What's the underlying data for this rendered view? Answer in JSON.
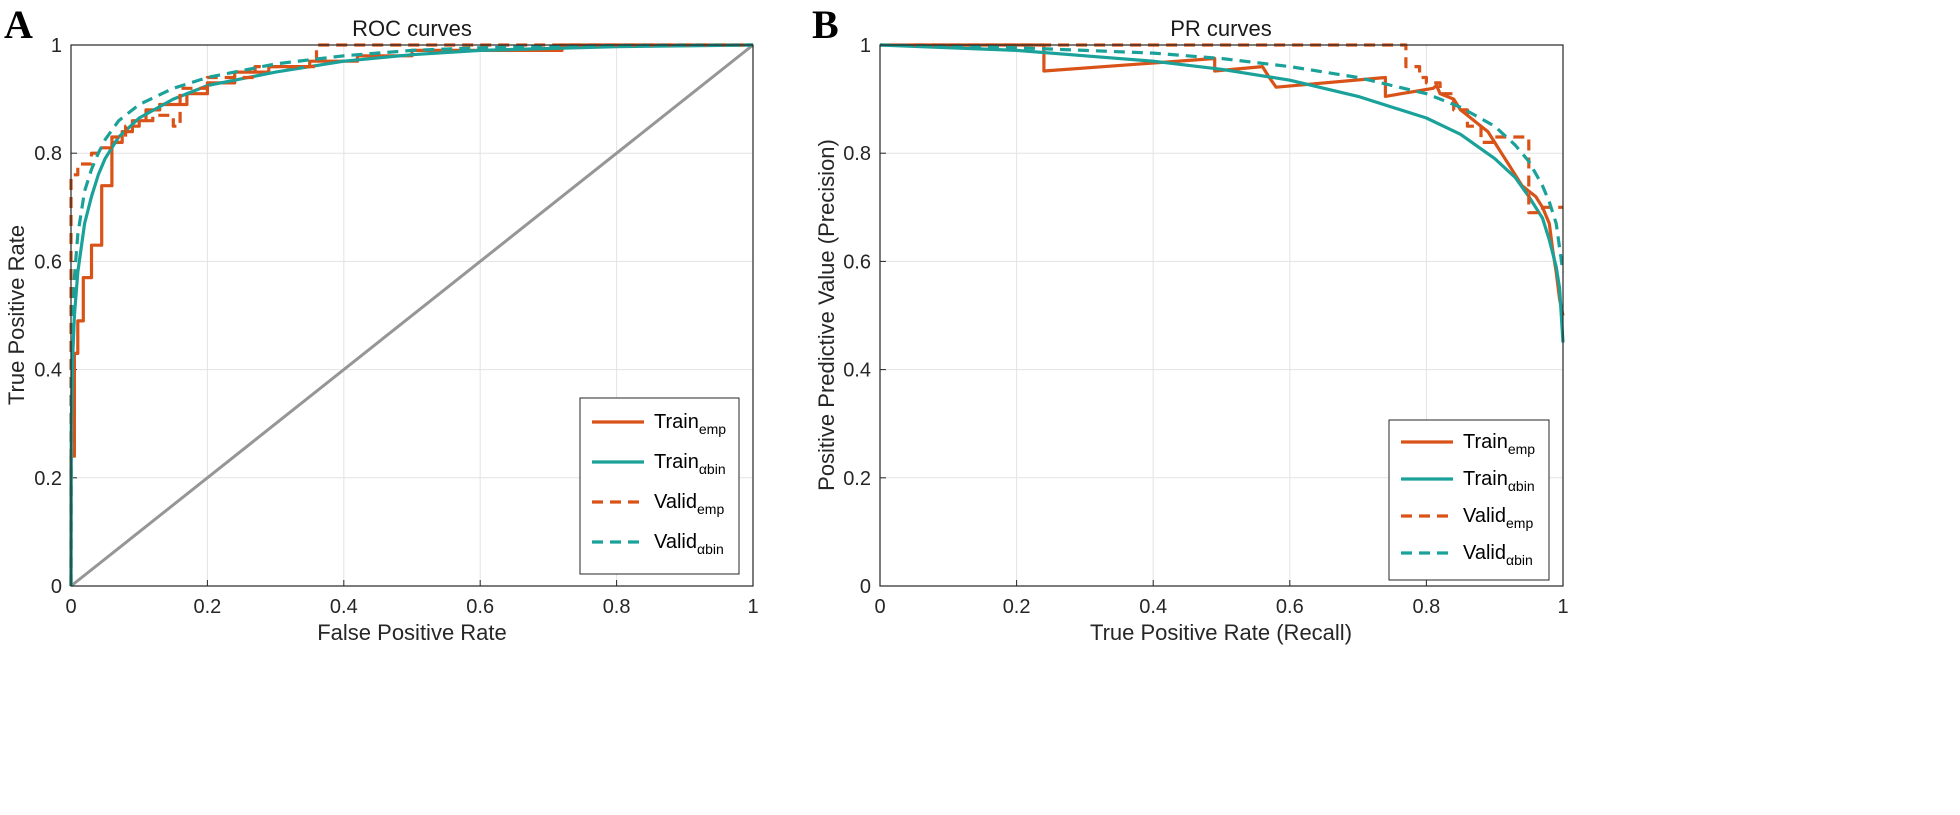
{
  "chart_data": [
    {
      "panel": "A",
      "type": "line",
      "title": "ROC curves",
      "xlabel": "False Positive Rate",
      "ylabel": "True Positive Rate",
      "xlim": [
        0,
        1
      ],
      "ylim": [
        0,
        1
      ],
      "xticks": [
        "0",
        "0.2",
        "0.4",
        "0.6",
        "0.8",
        "1"
      ],
      "yticks": [
        "0",
        "0.2",
        "0.4",
        "0.6",
        "0.8",
        "1"
      ],
      "grid": true,
      "legend_position": "bottom-right",
      "reference_line": {
        "x": [
          0,
          1
        ],
        "y": [
          0,
          1
        ],
        "color": "#969696"
      },
      "series": [
        {
          "name": "Train",
          "sub": "emp",
          "style": "solid",
          "color": "#D95319",
          "step": true,
          "x": [
            0,
            0,
            0.005,
            0.005,
            0.01,
            0.01,
            0.018,
            0.018,
            0.03,
            0.03,
            0.045,
            0.045,
            0.06,
            0.06,
            0.075,
            0.075,
            0.09,
            0.09,
            0.11,
            0.11,
            0.13,
            0.13,
            0.17,
            0.17,
            0.2,
            0.2,
            0.24,
            0.24,
            0.29,
            0.29,
            0.35,
            0.35,
            0.42,
            0.42,
            0.5,
            0.5,
            0.72,
            0.72,
            1
          ],
          "y": [
            0,
            0.24,
            0.24,
            0.43,
            0.43,
            0.49,
            0.49,
            0.57,
            0.57,
            0.63,
            0.63,
            0.74,
            0.74,
            0.82,
            0.82,
            0.84,
            0.84,
            0.86,
            0.86,
            0.88,
            0.88,
            0.89,
            0.89,
            0.91,
            0.91,
            0.93,
            0.93,
            0.95,
            0.95,
            0.96,
            0.96,
            0.97,
            0.97,
            0.98,
            0.98,
            0.99,
            0.99,
            1.0,
            1.0
          ]
        },
        {
          "name": "Train",
          "sub": "αbin",
          "style": "solid",
          "color": "#1AA29A",
          "step": false,
          "x": [
            0,
            0.0005,
            0.002,
            0.005,
            0.01,
            0.02,
            0.03,
            0.04,
            0.05,
            0.07,
            0.1,
            0.15,
            0.2,
            0.3,
            0.4,
            0.5,
            0.6,
            0.8,
            1.0
          ],
          "y": [
            0,
            0.3,
            0.41,
            0.5,
            0.58,
            0.67,
            0.72,
            0.76,
            0.79,
            0.83,
            0.865,
            0.9,
            0.925,
            0.95,
            0.97,
            0.982,
            0.99,
            0.997,
            1.0
          ]
        },
        {
          "name": "Valid",
          "sub": "emp",
          "style": "dashed",
          "color": "#D95319",
          "step": true,
          "x": [
            0,
            0,
            0.01,
            0.01,
            0.03,
            0.03,
            0.04,
            0.04,
            0.06,
            0.06,
            0.08,
            0.08,
            0.1,
            0.1,
            0.12,
            0.12,
            0.15,
            0.15,
            0.16,
            0.16,
            0.2,
            0.2,
            0.27,
            0.27,
            0.36,
            0.36,
            0.5,
            0.5,
            1
          ],
          "y": [
            0,
            0.76,
            0.76,
            0.78,
            0.78,
            0.8,
            0.8,
            0.81,
            0.81,
            0.83,
            0.83,
            0.85,
            0.85,
            0.86,
            0.86,
            0.87,
            0.87,
            0.85,
            0.85,
            0.92,
            0.92,
            0.94,
            0.94,
            0.96,
            0.96,
            1.0,
            1.0,
            1.0,
            1.0
          ]
        },
        {
          "name": "Valid",
          "sub": "αbin",
          "style": "dashed",
          "color": "#1AA29A",
          "step": false,
          "x": [
            0,
            0.0005,
            0.002,
            0.005,
            0.01,
            0.02,
            0.03,
            0.04,
            0.05,
            0.07,
            0.1,
            0.15,
            0.2,
            0.3,
            0.4,
            0.5,
            0.6,
            0.8,
            1.0
          ],
          "y": [
            0,
            0.36,
            0.48,
            0.57,
            0.65,
            0.73,
            0.77,
            0.8,
            0.825,
            0.86,
            0.89,
            0.92,
            0.94,
            0.965,
            0.98,
            0.99,
            0.995,
            0.999,
            1.0
          ]
        }
      ]
    },
    {
      "panel": "B",
      "type": "line",
      "title": "PR curves",
      "xlabel": "True Positive Rate (Recall)",
      "ylabel": "Positive Predictive Value (Precision)",
      "xlim": [
        0,
        1
      ],
      "ylim": [
        0,
        1
      ],
      "xticks": [
        "0",
        "0.2",
        "0.4",
        "0.6",
        "0.8",
        "1"
      ],
      "yticks": [
        "0",
        "0.2",
        "0.4",
        "0.6",
        "0.8",
        "1"
      ],
      "grid": true,
      "legend_position": "bottom-right",
      "series": [
        {
          "name": "Train",
          "sub": "emp",
          "style": "solid",
          "color": "#D95319",
          "step": false,
          "x": [
            0.0,
            0.24,
            0.24,
            0.49,
            0.49,
            0.56,
            0.57,
            0.58,
            0.74,
            0.74,
            0.81,
            0.815,
            0.82,
            0.84,
            0.85,
            0.86,
            0.87,
            0.88,
            0.89,
            0.9,
            0.91,
            0.92,
            0.93,
            0.94,
            0.95,
            0.96,
            0.97,
            0.98,
            0.985,
            0.99,
            0.995,
            1.0
          ],
          "y": [
            1.0,
            1.0,
            0.952,
            0.975,
            0.952,
            0.96,
            0.94,
            0.922,
            0.94,
            0.905,
            0.92,
            0.925,
            0.91,
            0.9,
            0.88,
            0.87,
            0.86,
            0.85,
            0.84,
            0.82,
            0.8,
            0.78,
            0.76,
            0.74,
            0.73,
            0.72,
            0.7,
            0.67,
            0.62,
            0.58,
            0.53,
            0.5
          ]
        },
        {
          "name": "Train",
          "sub": "αbin",
          "style": "solid",
          "color": "#1AA29A",
          "step": false,
          "x": [
            0,
            0.2,
            0.3,
            0.4,
            0.5,
            0.6,
            0.7,
            0.8,
            0.85,
            0.9,
            0.93,
            0.95,
            0.97,
            0.98,
            0.99,
            0.995,
            1.0
          ],
          "y": [
            1.0,
            0.99,
            0.98,
            0.97,
            0.955,
            0.935,
            0.905,
            0.865,
            0.835,
            0.79,
            0.755,
            0.72,
            0.68,
            0.64,
            0.59,
            0.55,
            0.45
          ]
        },
        {
          "name": "Valid",
          "sub": "emp",
          "style": "dashed",
          "color": "#D95319",
          "step": false,
          "x": [
            0.05,
            0.77,
            0.77,
            0.79,
            0.79,
            0.8,
            0.8,
            0.82,
            0.82,
            0.84,
            0.84,
            0.86,
            0.86,
            0.88,
            0.88,
            0.9,
            0.9,
            0.92,
            0.92,
            0.95,
            0.95,
            0.97,
            0.97,
            1.0
          ],
          "y": [
            1.0,
            1.0,
            0.96,
            0.96,
            0.94,
            0.94,
            0.93,
            0.93,
            0.91,
            0.91,
            0.88,
            0.88,
            0.85,
            0.85,
            0.82,
            0.82,
            0.83,
            0.83,
            0.83,
            0.83,
            0.69,
            0.69,
            0.7,
            0.7
          ]
        },
        {
          "name": "Valid",
          "sub": "αbin",
          "style": "dashed",
          "color": "#1AA29A",
          "step": false,
          "x": [
            0,
            0.2,
            0.3,
            0.4,
            0.5,
            0.6,
            0.7,
            0.8,
            0.85,
            0.9,
            0.93,
            0.95,
            0.97,
            0.98,
            0.99,
            1.0
          ],
          "y": [
            1.0,
            0.995,
            0.99,
            0.985,
            0.975,
            0.96,
            0.94,
            0.91,
            0.885,
            0.85,
            0.815,
            0.785,
            0.74,
            0.71,
            0.67,
            0.58
          ]
        }
      ]
    }
  ]
}
